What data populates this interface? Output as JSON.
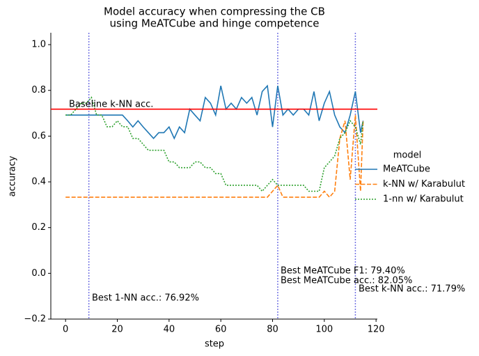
{
  "chart_data": {
    "type": "line",
    "title": [
      "Model accuracy when compressing the CB",
      "using MeATCube and hinge competence"
    ],
    "x_label": "step",
    "y_label": "accuracy",
    "x": [
      0,
      2,
      4,
      6,
      8,
      10,
      12,
      14,
      16,
      18,
      20,
      22,
      24,
      26,
      28,
      30,
      32,
      34,
      36,
      38,
      40,
      42,
      44,
      46,
      48,
      50,
      52,
      54,
      56,
      58,
      60,
      62,
      64,
      66,
      68,
      70,
      72,
      74,
      76,
      78,
      80,
      82,
      84,
      86,
      88,
      90,
      92,
      94,
      96,
      98,
      100,
      102,
      104,
      106,
      108,
      110,
      112,
      114,
      115
    ],
    "series": [
      {
        "name": "MeATCube",
        "color": "#1f77b4",
        "style": "solid",
        "values": [
          0.692,
          0.692,
          0.692,
          0.692,
          0.692,
          0.692,
          0.692,
          0.692,
          0.692,
          0.692,
          0.692,
          0.692,
          0.667,
          0.64,
          0.667,
          0.64,
          0.615,
          0.59,
          0.615,
          0.615,
          0.64,
          0.59,
          0.64,
          0.615,
          0.718,
          0.692,
          0.667,
          0.769,
          0.744,
          0.692,
          0.82,
          0.718,
          0.744,
          0.718,
          0.769,
          0.744,
          0.769,
          0.692,
          0.795,
          0.82,
          0.64,
          0.82,
          0.692,
          0.718,
          0.692,
          0.718,
          0.718,
          0.692,
          0.795,
          0.667,
          0.744,
          0.795,
          0.692,
          0.64,
          0.615,
          0.692,
          0.795,
          0.615,
          0.667
        ]
      },
      {
        "name": "k-NN w/ Karabulut",
        "color": "#ff7f0e",
        "style": "dashed",
        "values": [
          0.333,
          0.333,
          0.333,
          0.333,
          0.333,
          0.333,
          0.333,
          0.333,
          0.333,
          0.333,
          0.333,
          0.333,
          0.333,
          0.333,
          0.333,
          0.333,
          0.333,
          0.333,
          0.333,
          0.333,
          0.333,
          0.333,
          0.333,
          0.333,
          0.333,
          0.333,
          0.333,
          0.333,
          0.333,
          0.333,
          0.333,
          0.333,
          0.333,
          0.333,
          0.333,
          0.333,
          0.333,
          0.333,
          0.333,
          0.333,
          0.359,
          0.385,
          0.333,
          0.333,
          0.333,
          0.333,
          0.333,
          0.333,
          0.333,
          0.333,
          0.359,
          0.333,
          0.359,
          0.59,
          0.667,
          0.41,
          0.692,
          0.359,
          0.667
        ]
      },
      {
        "name": "1-nn w/ Karabulut",
        "color": "#2ca02c",
        "style": "dotted",
        "values": [
          0.692,
          0.692,
          0.718,
          0.744,
          0.744,
          0.769,
          0.692,
          0.692,
          0.641,
          0.641,
          0.667,
          0.641,
          0.641,
          0.59,
          0.59,
          0.564,
          0.538,
          0.538,
          0.538,
          0.538,
          0.487,
          0.487,
          0.462,
          0.462,
          0.462,
          0.487,
          0.487,
          0.462,
          0.462,
          0.436,
          0.436,
          0.385,
          0.385,
          0.385,
          0.385,
          0.385,
          0.385,
          0.385,
          0.359,
          0.385,
          0.41,
          0.385,
          0.385,
          0.385,
          0.385,
          0.385,
          0.385,
          0.359,
          0.359,
          0.359,
          0.462,
          0.487,
          0.513,
          0.59,
          0.615,
          0.667,
          0.64,
          0.564,
          0.667
        ]
      }
    ],
    "baseline": 0.718,
    "baseline_color": "#ff0000",
    "vlines": [
      9,
      82,
      112
    ],
    "annotations": [
      "Baseline k-NN acc.",
      "Best 1-NN acc.: 76.92%",
      "Best MeATCube F1: 79.40%",
      "Best MeATCube acc.: 82.05%",
      "Best k-NN acc.: 71.79%"
    ],
    "legend_title": "model",
    "xlim": [
      -5.7,
      120.5
    ],
    "xticks": [
      0,
      20,
      40,
      60,
      80,
      100,
      120
    ],
    "ylim": [
      -0.2,
      1.052
    ],
    "yticks": [
      {
        "value": -0.2,
        "label": "−0.2"
      },
      {
        "value": 0,
        "label": "0.0"
      },
      0.2,
      0.4,
      0.6,
      0.8,
      {
        "value": 1,
        "label": "1.0"
      }
    ]
  }
}
